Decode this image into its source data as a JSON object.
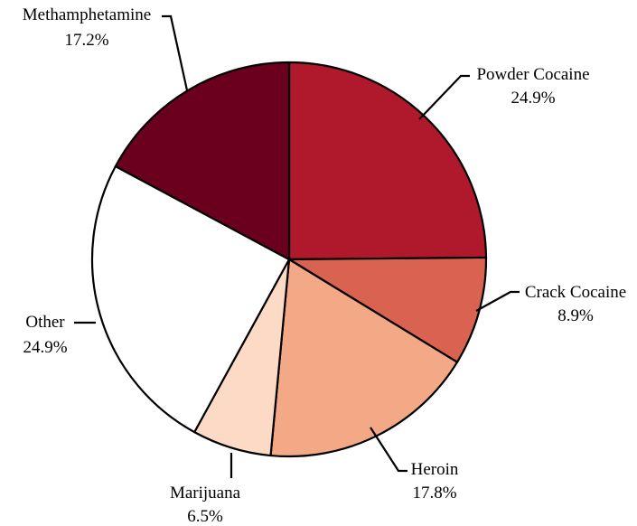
{
  "chart_data": {
    "type": "pie",
    "title": "",
    "start_angle_deg": 0,
    "direction": "clockwise",
    "slices": [
      {
        "label": "Powder Cocaine",
        "value": 24.9,
        "value_label": "24.9%",
        "color": "#B0192B"
      },
      {
        "label": "Crack Cocaine",
        "value": 8.9,
        "value_label": "8.9%",
        "color": "#D96251"
      },
      {
        "label": "Heroin",
        "value": 17.8,
        "value_label": "17.8%",
        "color": "#F3A886"
      },
      {
        "label": "Marijuana",
        "value": 6.5,
        "value_label": "6.5%",
        "color": "#FCDAC6"
      },
      {
        "label": "Other",
        "value": 24.9,
        "value_label": "24.9%",
        "color": "#FFFFFF"
      },
      {
        "label": "Methamphetamine",
        "value": 17.2,
        "value_label": "17.2%",
        "color": "#6B001E"
      }
    ]
  }
}
